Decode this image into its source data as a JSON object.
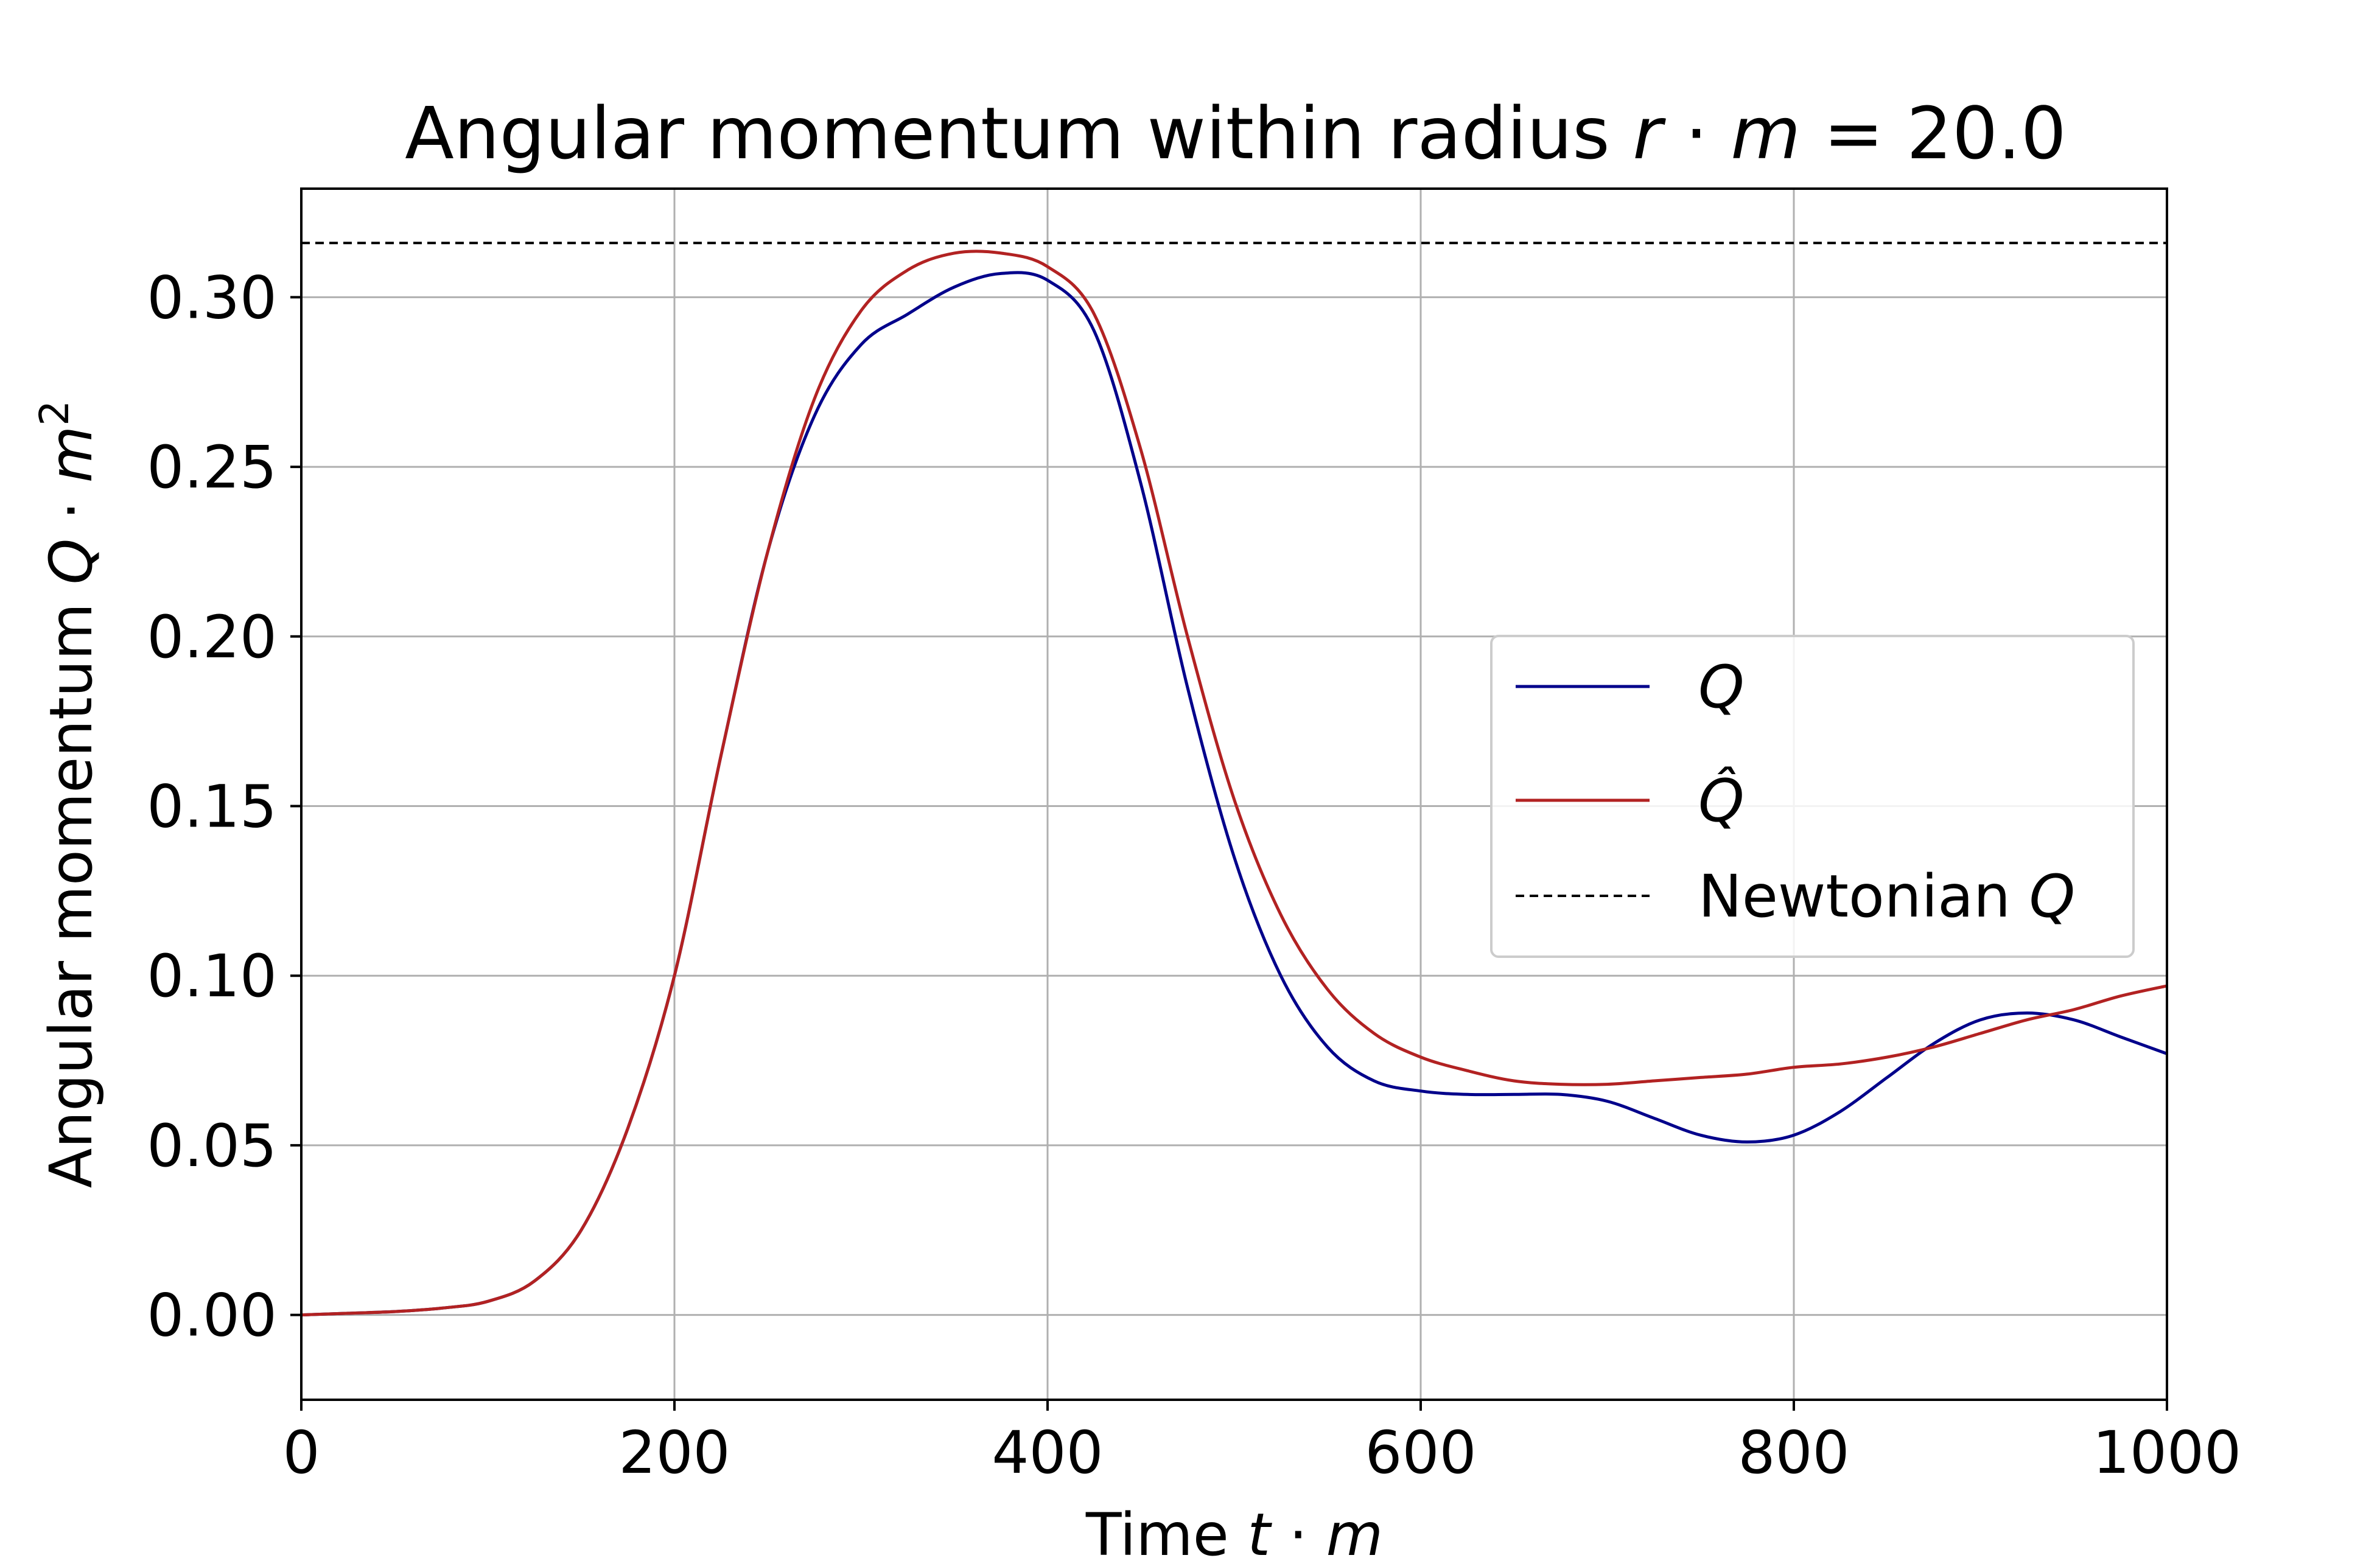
{
  "chart_data": {
    "type": "line",
    "title": "Angular momentum within radius r·m = 20.0",
    "title_parts": {
      "text": "Angular momentum within radius ",
      "var1": "r",
      "dot": " · ",
      "var2": "m",
      "eq": " = 20.0"
    },
    "xlabel": "Time t · m",
    "xlabel_parts": {
      "text": "Time ",
      "var1": "t",
      "dot": " · ",
      "var2": "m"
    },
    "ylabel": "Angular momentum Q · m²",
    "ylabel_parts": {
      "text": "Angular momentum ",
      "var1": "Q",
      "dot": " · ",
      "var2": "m",
      "sup": "2"
    },
    "xlim": [
      0,
      1000
    ],
    "ylim": [
      -0.025,
      0.332
    ],
    "xticks": [
      0,
      200,
      400,
      600,
      800,
      1000
    ],
    "xtick_labels": [
      "0",
      "200",
      "400",
      "600",
      "800",
      "1000"
    ],
    "yticks": [
      0.0,
      0.05,
      0.1,
      0.15,
      0.2,
      0.25,
      0.3
    ],
    "ytick_labels": [
      "0.00",
      "0.05",
      "0.10",
      "0.15",
      "0.20",
      "0.25",
      "0.30"
    ],
    "grid": true,
    "legend_position": "center-right",
    "x": [
      0,
      25,
      50,
      75,
      100,
      125,
      150,
      175,
      200,
      225,
      250,
      275,
      300,
      325,
      350,
      375,
      400,
      425,
      450,
      475,
      500,
      525,
      550,
      575,
      600,
      625,
      650,
      675,
      700,
      725,
      750,
      775,
      800,
      825,
      850,
      875,
      900,
      925,
      950,
      975,
      1000
    ],
    "series": [
      {
        "name": "Q",
        "label_display": "Q",
        "color": "#00008b",
        "style": "solid",
        "values": [
          0.0,
          0.0005,
          0.001,
          0.002,
          0.004,
          0.01,
          0.025,
          0.055,
          0.1,
          0.165,
          0.225,
          0.265,
          0.286,
          0.295,
          0.303,
          0.307,
          0.305,
          0.29,
          0.245,
          0.185,
          0.135,
          0.1,
          0.079,
          0.069,
          0.066,
          0.065,
          0.065,
          0.065,
          0.063,
          0.058,
          0.053,
          0.051,
          0.053,
          0.06,
          0.07,
          0.08,
          0.087,
          0.089,
          0.087,
          0.082,
          0.077
        ]
      },
      {
        "name": "Q̂",
        "label_display": "Q̂",
        "color": "#b22222",
        "style": "solid",
        "values": [
          0.0,
          0.0005,
          0.001,
          0.002,
          0.004,
          0.01,
          0.025,
          0.055,
          0.1,
          0.165,
          0.225,
          0.27,
          0.296,
          0.308,
          0.313,
          0.313,
          0.309,
          0.295,
          0.255,
          0.2,
          0.152,
          0.118,
          0.096,
          0.083,
          0.076,
          0.072,
          0.069,
          0.068,
          0.068,
          0.069,
          0.07,
          0.071,
          0.073,
          0.074,
          0.076,
          0.079,
          0.083,
          0.087,
          0.09,
          0.094,
          0.097
        ]
      },
      {
        "name": "Newtonian Q",
        "label_text": "Newtonian ",
        "label_var": "Q",
        "color": "#000000",
        "style": "dashed",
        "constant": 0.316
      }
    ]
  }
}
